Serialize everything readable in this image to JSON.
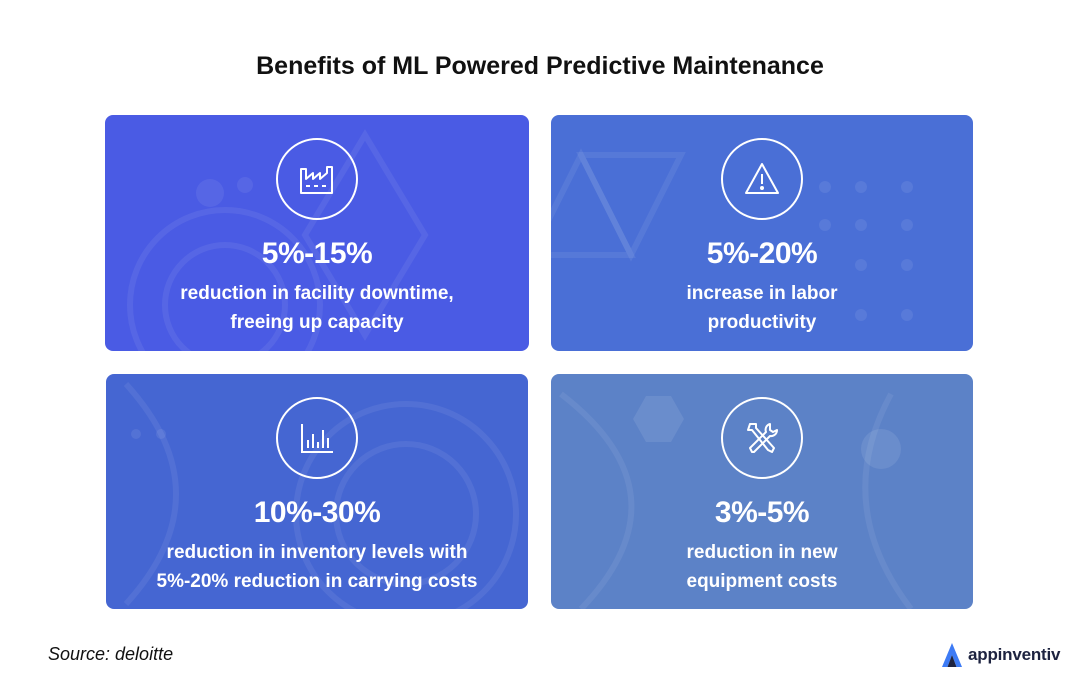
{
  "title": "Benefits of ML Powered Predictive Maintenance",
  "cards": [
    {
      "icon": "factory-icon",
      "stat": "5%-15%",
      "line1": "reduction in facility downtime,",
      "line2": "freeing up capacity"
    },
    {
      "icon": "warning-icon",
      "stat": "5%-20%",
      "line1": "increase in labor",
      "line2": "productivity"
    },
    {
      "icon": "bar-chart-icon",
      "stat": "10%-30%",
      "line1": "reduction in inventory levels with",
      "line2": "5%-20% reduction in carrying costs"
    },
    {
      "icon": "tools-icon",
      "stat": "3%-5%",
      "line1": "reduction in new",
      "line2": "equipment costs"
    }
  ],
  "source": "Source: deloitte",
  "brand": {
    "name": "appinventiv",
    "color": "#1d2340",
    "accent": "#3d7bf5"
  },
  "colors": {
    "card1": "#4a5be4",
    "card2": "#4a6fd6",
    "card3": "#4566d2",
    "card4": "#5c82c7"
  }
}
